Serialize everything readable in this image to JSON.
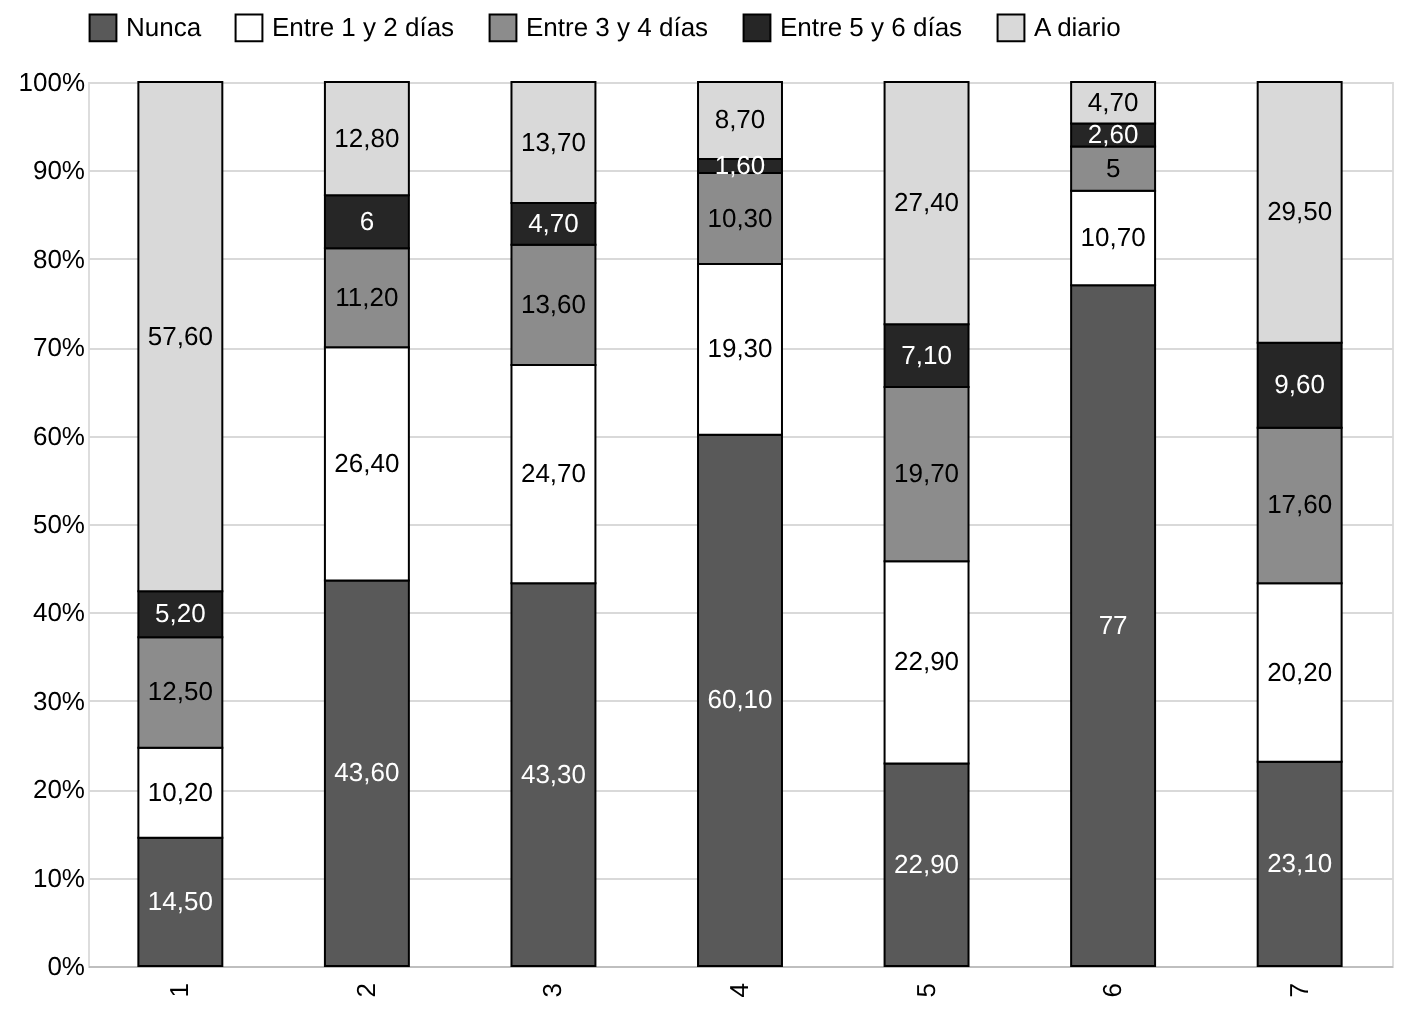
{
  "chart_data": {
    "type": "bar",
    "stacked": true,
    "categories": [
      "1",
      "2",
      "3",
      "4",
      "5",
      "6",
      "7"
    ],
    "series": [
      {
        "name": "Nunca",
        "color": "#595959",
        "values": [
          14.5,
          43.6,
          43.3,
          60.1,
          22.9,
          77,
          23.1
        ],
        "value_labels": [
          "14,50",
          "43,60",
          "43,30",
          "60,10",
          "22,90",
          "77",
          "23,10"
        ]
      },
      {
        "name": "Entre 1 y 2 días",
        "color": "#ffffff",
        "values": [
          10.2,
          26.4,
          24.7,
          19.3,
          22.9,
          10.7,
          20.2
        ],
        "value_labels": [
          "10,20",
          "26,40",
          "24,70",
          "19,30",
          "22,90",
          "10,70",
          "20,20"
        ]
      },
      {
        "name": "Entre 3 y 4 días",
        "color": "#8c8c8c",
        "values": [
          12.5,
          11.2,
          13.6,
          10.3,
          19.7,
          5,
          17.6
        ],
        "value_labels": [
          "12,50",
          "11,20",
          "13,60",
          "10,30",
          "19,70",
          "5",
          "17,60"
        ]
      },
      {
        "name": "Entre 5 y 6 días",
        "color": "#262626",
        "values": [
          5.2,
          6,
          4.7,
          1.6,
          7.1,
          2.6,
          9.6
        ],
        "value_labels": [
          "5,20",
          "6",
          "4,70",
          "1,60",
          "7,10",
          "2,60",
          "9,60"
        ]
      },
      {
        "name": "A diario",
        "color": "#d9d9d9",
        "values": [
          57.6,
          12.8,
          13.7,
          8.7,
          27.4,
          4.7,
          29.5
        ],
        "value_labels": [
          "57,60",
          "12,80",
          "13,70",
          "8,70",
          "27,40",
          "4,70",
          "29,50"
        ]
      }
    ],
    "ylim": [
      0,
      100
    ],
    "yticks": [
      {
        "value": 0,
        "label": "0%"
      },
      {
        "value": 10,
        "label": "10%"
      },
      {
        "value": 20,
        "label": "20%"
      },
      {
        "value": 30,
        "label": "30%"
      },
      {
        "value": 40,
        "label": "40%"
      },
      {
        "value": 50,
        "label": "50%"
      },
      {
        "value": 60,
        "label": "60%"
      },
      {
        "value": 70,
        "label": "70%"
      },
      {
        "value": 80,
        "label": "80%"
      },
      {
        "value": 90,
        "label": "90%"
      },
      {
        "value": 100,
        "label": "100%"
      }
    ],
    "grid": "y",
    "legend": "top"
  }
}
